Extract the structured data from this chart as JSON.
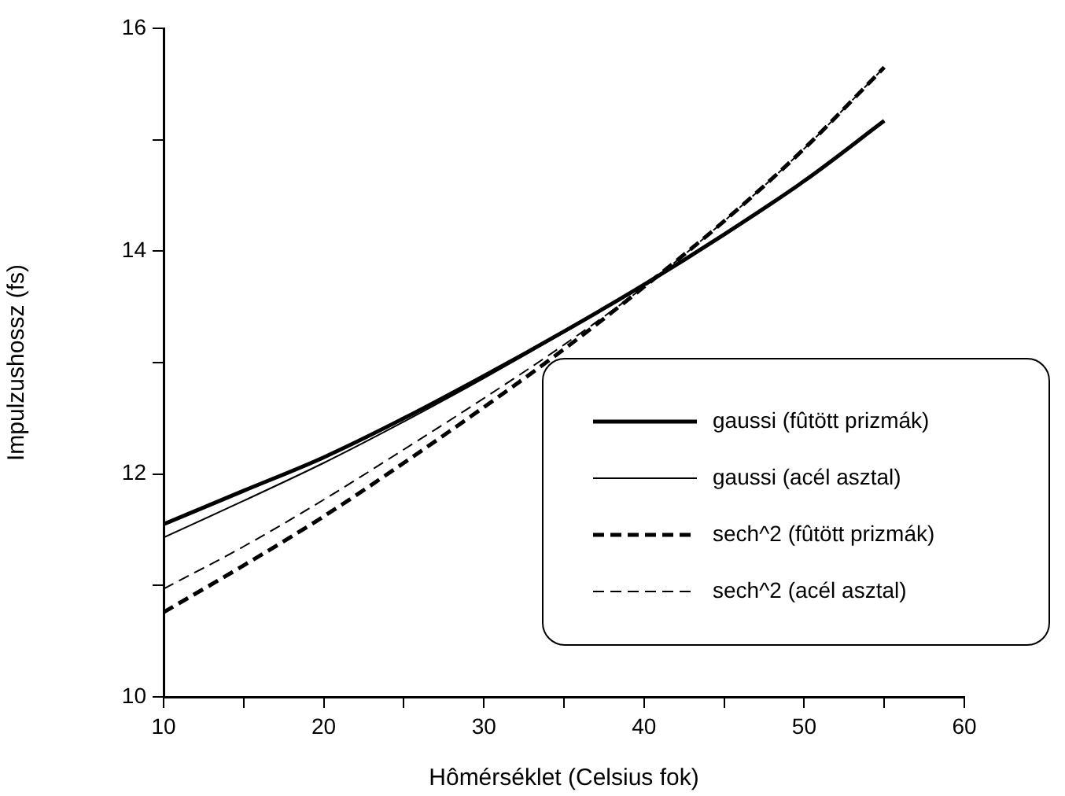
{
  "chart_data": {
    "type": "line",
    "xlabel": "Hômérséklet (Celsius fok)",
    "ylabel": "Impulzushossz (fs)",
    "x": [
      10,
      15,
      20,
      25,
      30,
      35,
      40,
      45,
      50,
      55
    ],
    "xlim": [
      10,
      60
    ],
    "xticks": [
      10,
      {
        "value": 15,
        "label": null
      },
      20,
      {
        "value": 25,
        "label": null
      },
      30,
      {
        "value": 35,
        "label": null
      },
      40,
      {
        "value": 45,
        "label": null
      },
      50,
      {
        "value": 55,
        "label": null
      },
      60
    ],
    "ylim": [
      10,
      16
    ],
    "yticks": [
      10,
      {
        "value": 11,
        "label": null
      },
      12,
      {
        "value": 13,
        "label": null
      },
      14,
      {
        "value": 15,
        "label": null
      },
      16
    ],
    "grid": false,
    "legend": "right",
    "marker": "none",
    "series": [
      {
        "name": "gaussi (fûtött prizmák)",
        "color": "#000000",
        "line_style": "solid",
        "values": [
          11.55,
          11.85,
          12.15,
          12.5,
          12.88,
          13.28,
          13.7,
          14.15,
          14.63,
          15.17
        ]
      },
      {
        "name": "gaussi (acél asztal)",
        "color": "#000000",
        "line_style": "solid",
        "values": [
          11.43,
          11.76,
          12.1,
          12.47,
          12.86,
          13.27,
          13.7,
          14.15,
          14.63,
          15.17
        ]
      },
      {
        "name": "sech^2 (fûtött prizmák)",
        "color": "#000000",
        "line_style": "dashed",
        "values": [
          10.76,
          11.18,
          11.62,
          12.1,
          12.6,
          13.12,
          13.68,
          14.27,
          14.92,
          15.65
        ]
      },
      {
        "name": "sech^2 (acél asztal)",
        "color": "#000000",
        "line_style": "dashed",
        "values": [
          10.97,
          11.35,
          11.77,
          12.22,
          12.68,
          13.16,
          13.68,
          14.27,
          14.92,
          15.65
        ]
      }
    ]
  }
}
